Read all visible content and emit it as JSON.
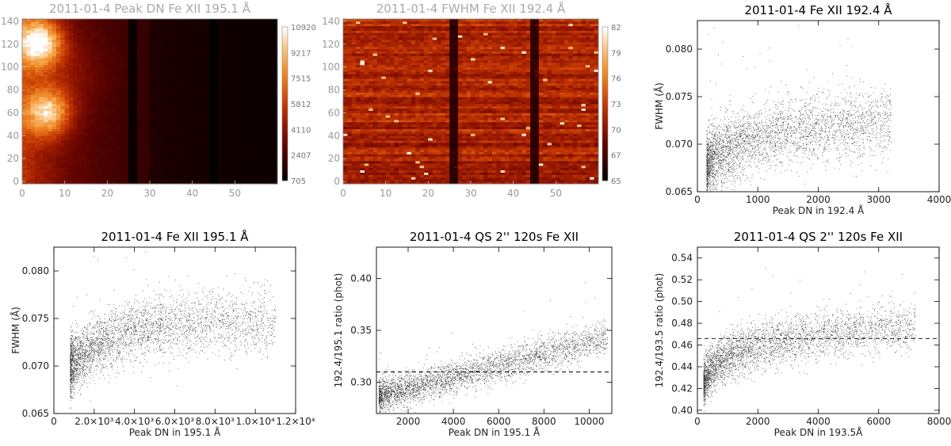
{
  "figure": {
    "panels": [
      {
        "id": "p1",
        "title": "2011-01-4 Peak DN Fe XII 195.1 Å",
        "title_color": "#aaaaaa"
      },
      {
        "id": "p2",
        "title": "2011-01-4 FWHM  Fe XII 192.4 Å",
        "title_color": "#aaaaaa"
      },
      {
        "id": "p3",
        "title": "2011-01-4 Fe XII 192.4 Å",
        "title_color": "#000000"
      },
      {
        "id": "p4",
        "title": "2011-01-4 Fe XII 195.1 Å",
        "title_color": "#000000"
      },
      {
        "id": "p5",
        "title": "2011-01-4 QS 2'' 120s Fe XII",
        "title_color": "#000000"
      },
      {
        "id": "p6",
        "title": "2011-01-4 QS 2'' 120s Fe XII",
        "title_color": "#000000"
      }
    ]
  },
  "chart_data": [
    {
      "type": "heatmap",
      "title": "2011-01-4 Peak DN Fe XII 195.1 Å",
      "xlabel": "",
      "ylabel": "",
      "xlim": [
        0,
        60
      ],
      "ylim": [
        -2,
        142
      ],
      "xticks": [
        "0",
        "10",
        "20",
        "30",
        "40",
        "50"
      ],
      "yticks": [
        "0",
        "20",
        "40",
        "60",
        "80",
        "100",
        "120",
        "140"
      ],
      "colorbar": {
        "min": 705,
        "max": 10920,
        "ticks": [
          "10920",
          "9217",
          "7515",
          "5812",
          "4110",
          "2407",
          "705"
        ]
      },
      "colormap": [
        "#000000",
        "#3a0000",
        "#6a0600",
        "#9a1a00",
        "#c63a04",
        "#e26c14",
        "#f39a3a",
        "#fbc88a",
        "#ffffff"
      ],
      "dark_columns_x": [
        26,
        45
      ],
      "bright_regions": [
        {
          "x": 4,
          "y": 122,
          "peak": 10920
        },
        {
          "x": 6,
          "y": 62,
          "peak": 9217
        }
      ]
    },
    {
      "type": "heatmap",
      "title": "2011-01-4 FWHM  Fe XII 192.4 Å",
      "xlabel": "",
      "ylabel": "",
      "xlim": [
        0,
        60
      ],
      "ylim": [
        -2,
        142
      ],
      "xticks": [
        "0",
        "10",
        "20",
        "30",
        "40",
        "50"
      ],
      "yticks": [
        "0",
        "20",
        "40",
        "60",
        "80",
        "100",
        "120",
        "140"
      ],
      "colorbar": {
        "min": 65,
        "max": 82,
        "ticks": [
          "82",
          "79",
          "76",
          "73",
          "70",
          "67",
          "65"
        ]
      },
      "colormap": [
        "#000000",
        "#3a0000",
        "#6a0600",
        "#9a1a00",
        "#c63a04",
        "#e26c14",
        "#f39a3a",
        "#fbc88a",
        "#ffffff"
      ],
      "dark_columns_x": [
        26,
        45
      ]
    },
    {
      "type": "scatter",
      "title": "2011-01-4 Fe XII 192.4 Å",
      "xlabel": "Peak DN in 192.4 Å",
      "ylabel": "FWHM (Å)",
      "xlim": [
        0,
        4000
      ],
      "ylim": [
        0.065,
        0.083
      ],
      "xticks": [
        "0",
        "1000",
        "2000",
        "3000",
        "4000"
      ],
      "yticks": [
        "0.065",
        "0.070",
        "0.075",
        "0.080"
      ],
      "trend": {
        "kind": "log",
        "x_range": [
          150,
          3200
        ],
        "y_at_min": 0.0675,
        "y_at_max": 0.0725,
        "scatter": 0.0018
      },
      "n_points": 3500
    },
    {
      "type": "scatter",
      "title": "2011-01-4 Fe XII 195.1 Å",
      "xlabel": "Peak DN in 195.1 Å",
      "ylabel": "FWHM (Å)",
      "xlim": [
        0,
        12000
      ],
      "ylim": [
        0.065,
        0.0825
      ],
      "xticks": [
        "0",
        "2.0×10³",
        "4.0×10³",
        "6.0×10³",
        "8.0×10³",
        "1.0×10⁴",
        "1.2×10⁴"
      ],
      "yticks": [
        "0.065",
        "0.070",
        "0.075",
        "0.080"
      ],
      "trend": {
        "kind": "saturating",
        "x_range": [
          800,
          11000
        ],
        "y_at_min": 0.07,
        "y_at_max": 0.0748,
        "scatter": 0.0016
      },
      "n_points": 3500
    },
    {
      "type": "scatter",
      "title": "2011-01-4 QS 2'' 120s Fe XII",
      "xlabel": "Peak DN in 195.1 Å",
      "ylabel": "192.4/195.1 ratio (phot)",
      "xlim": [
        600,
        11000
      ],
      "ylim": [
        0.27,
        0.43
      ],
      "xticks": [
        "2000",
        "4000",
        "6000",
        "8000",
        "10000"
      ],
      "yticks": [
        "0.30",
        "0.35",
        "0.40"
      ],
      "hline": 0.31,
      "trend": {
        "kind": "linear",
        "x_range": [
          700,
          10800
        ],
        "y_at_min": 0.287,
        "y_at_max": 0.343,
        "scatter": 0.008
      },
      "n_points": 3500
    },
    {
      "type": "scatter",
      "title": "2011-01-4 QS 2'' 120s Fe XII",
      "xlabel": "Peak DN in 193.5Å",
      "ylabel": "192.4/193.5 ratio (phot)",
      "xlim": [
        0,
        8000
      ],
      "ylim": [
        0.397,
        0.55
      ],
      "xticks": [
        "0",
        "2000",
        "4000",
        "6000",
        "8000"
      ],
      "yticks": [
        "0.40",
        "0.42",
        "0.44",
        "0.46",
        "0.48",
        "0.50",
        "0.52",
        "0.54"
      ],
      "hline": 0.466,
      "trend": {
        "kind": "log",
        "x_range": [
          200,
          7200
        ],
        "y_at_min": 0.425,
        "y_at_max": 0.478,
        "scatter": 0.011
      },
      "n_points": 3500
    }
  ]
}
